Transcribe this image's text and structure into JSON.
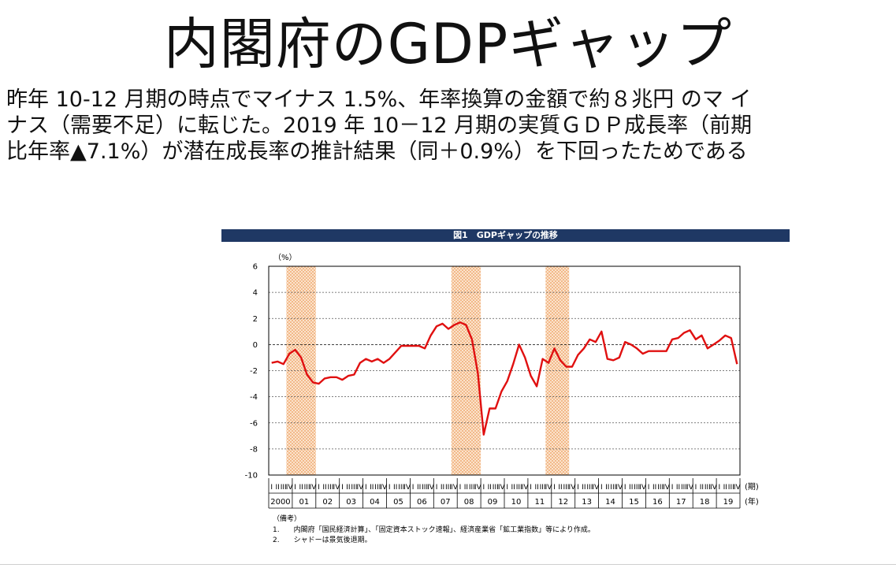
{
  "slide": {
    "title": "内閣府のGDPギャップ",
    "body_lines": [
      "昨年 10-12 月期の時点でマイナス 1.5%、年率換算の金額で約８兆円 のマ イ",
      "ナス（需要不足）に転じた。2019 年 10－12 月期の実質ＧＤＰ成長率（前期",
      "比年率▲7.1%）が潜在成長率の推計結果（同＋0.9%）を下回ったためである"
    ]
  },
  "chart_data": {
    "type": "line",
    "title": "図1　GDPギャップの推移",
    "ylabel": "（%）",
    "ylim": [
      -10,
      6
    ],
    "yticks": [
      "6",
      "4",
      "2",
      "0",
      "-2",
      "-4",
      "-6",
      "-8",
      "-10"
    ],
    "quarter_marks": [
      "I",
      "II",
      "III",
      "IV"
    ],
    "x_unit_quarter": "(期)",
    "x_unit_year": "(年)",
    "years": [
      "2000",
      "01",
      "02",
      "03",
      "04",
      "05",
      "06",
      "07",
      "08",
      "09",
      "10",
      "11",
      "12",
      "13",
      "14",
      "15",
      "16",
      "17",
      "18",
      "19"
    ],
    "grid": true,
    "recession_shading": [
      {
        "start_quarter_index": 3,
        "end_quarter_index": 8
      },
      {
        "start_quarter_index": 31,
        "end_quarter_index": 36
      },
      {
        "start_quarter_index": 47,
        "end_quarter_index": 51
      }
    ],
    "series": [
      {
        "color": "#e01010",
        "values": [
          -1.4,
          -1.3,
          -1.5,
          -0.7,
          -0.4,
          -1.0,
          -2.3,
          -2.9,
          -3.0,
          -2.6,
          -2.5,
          -2.5,
          -2.7,
          -2.4,
          -2.3,
          -1.4,
          -1.1,
          -1.3,
          -1.1,
          -1.4,
          -1.1,
          -0.6,
          -0.1,
          -0.1,
          -0.1,
          -0.1,
          -0.3,
          0.7,
          1.4,
          1.6,
          1.2,
          1.5,
          1.7,
          1.5,
          0.4,
          -2.2,
          -6.9,
          -4.9,
          -4.9,
          -3.6,
          -2.8,
          -1.5,
          0.0,
          -1.0,
          -2.4,
          -3.2,
          -1.1,
          -1.4,
          -0.3,
          -1.2,
          -1.7,
          -1.7,
          -0.8,
          -0.3,
          0.4,
          0.2,
          1.0,
          -1.1,
          -1.2,
          -1.0,
          0.2,
          0.0,
          -0.3,
          -0.7,
          -0.5,
          -0.5,
          -0.5,
          -0.5,
          0.4,
          0.5,
          0.9,
          1.1,
          0.4,
          0.7,
          -0.3,
          0.0,
          0.3,
          0.7,
          0.5,
          -1.5
        ]
      }
    ]
  },
  "notes": {
    "heading": "（備考）",
    "items": [
      "1.　　内閣府「国民経済計算」、「固定資本ストック速報」、経済産業省「鉱工業指数」等により作成。",
      "2.　　シャドーは景気後退期。"
    ]
  }
}
